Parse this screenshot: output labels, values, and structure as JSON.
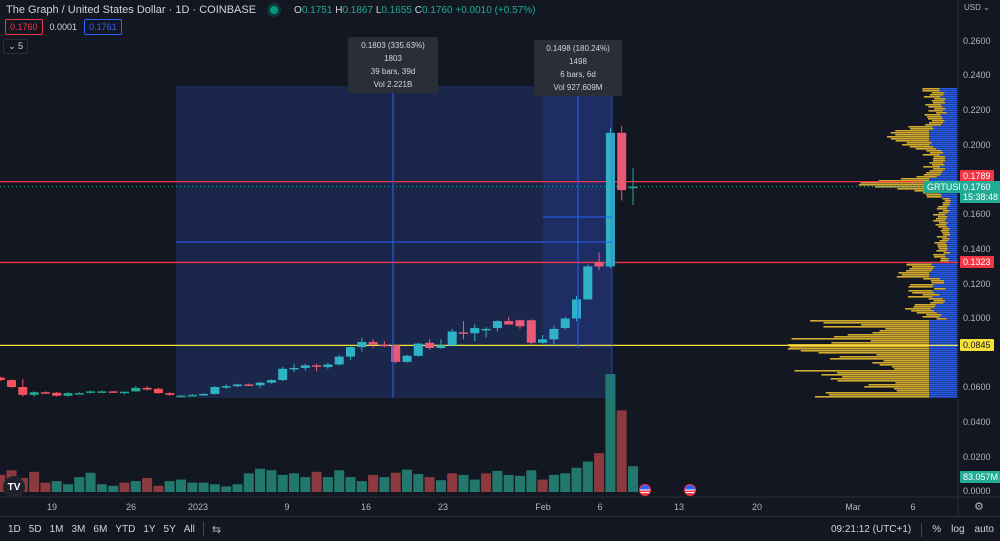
{
  "header": {
    "title": "The Graph / United States Dollar · 1D · COINBASE",
    "ohlc": {
      "o_label": "O",
      "o": "0.1751",
      "h_label": "H",
      "h": "0.1867",
      "l_label": "L",
      "l": "0.1655",
      "c_label": "C",
      "c": "0.1760",
      "change": "+0.0010 (+0.57%)"
    },
    "sell_price": "0.1760",
    "spread": "0.0001",
    "buy_price": "0.1761",
    "indicators_toggle": "⌄ 5"
  },
  "tooltips": [
    {
      "line1": "0.1803 (335.63%) 1803",
      "line2": "39 bars, 39d",
      "line3": "Vol 2.221B"
    },
    {
      "line1": "0.1498 (180.24%) 1498",
      "line2": "6 bars, 6d",
      "line3": "Vol 927.609M"
    }
  ],
  "price_axis": {
    "currency": "USD ⌄",
    "ticks": [
      "0.2600",
      "0.2400",
      "0.2200",
      "0.2000",
      "0.1600",
      "0.1400",
      "0.1200",
      "0.1000",
      "0.0600",
      "0.0400",
      "0.0200",
      "0.0000"
    ],
    "tags": {
      "resistance_high": "0.1789",
      "symbol": "GRTUSD",
      "last_price": "0.1760",
      "countdown": "15:38:48",
      "resistance_low": "0.1323",
      "support": "0.0845",
      "volume": "83.057M"
    }
  },
  "time_axis": {
    "labels": [
      "19",
      "26",
      "2023",
      "9",
      "16",
      "23",
      "Feb",
      "6",
      "13",
      "20",
      "Mar",
      "6"
    ]
  },
  "bottom_bar": {
    "ranges": [
      "1D",
      "5D",
      "1M",
      "3M",
      "6M",
      "YTD",
      "1Y",
      "5Y",
      "All"
    ],
    "clock": "09:21:12 (UTC+1)",
    "percent": "%",
    "log": "log",
    "auto": "auto"
  },
  "colors": {
    "background": "#131722",
    "up": "#22ab94",
    "down": "#f7525f",
    "up_volume": "#22786c",
    "down_volume": "#8c3a40",
    "horizontal_red": "#f23645",
    "horizontal_yellow": "#f5e13b",
    "range_fill": "#1c2a52",
    "range_line": "#2962ff",
    "vp_up": "#2962ff",
    "vp_down": "#f6c531"
  },
  "chart_data": {
    "type": "candlestick",
    "title": "The Graph / United States Dollar · 1D · COINBASE",
    "xlabel": "",
    "ylabel": "USD",
    "ylim": [
      0,
      0.26
    ],
    "x": [
      "Dec 14",
      "Dec 15",
      "Dec 16",
      "Dec 17",
      "Dec 18",
      "Dec 19",
      "Dec 20",
      "Dec 21",
      "Dec 22",
      "Dec 23",
      "Dec 24",
      "Dec 25",
      "Dec 26",
      "Dec 27",
      "Dec 28",
      "Dec 29",
      "Dec 30",
      "Dec 31",
      "Jan 1",
      "Jan 2",
      "Jan 3",
      "Jan 4",
      "Jan 5",
      "Jan 6",
      "Jan 7",
      "Jan 8",
      "Jan 9",
      "Jan 10",
      "Jan 11",
      "Jan 12",
      "Jan 13",
      "Jan 14",
      "Jan 15",
      "Jan 16",
      "Jan 17",
      "Jan 18",
      "Jan 19",
      "Jan 20",
      "Jan 21",
      "Jan 22",
      "Jan 23",
      "Jan 24",
      "Jan 25",
      "Jan 26",
      "Jan 27",
      "Jan 28",
      "Jan 29",
      "Jan 30",
      "Jan 31",
      "Feb 1",
      "Feb 2",
      "Feb 3",
      "Feb 4",
      "Feb 5",
      "Feb 6",
      "Feb 7",
      "Feb 8"
    ],
    "candles": [
      {
        "o": 0.066,
        "h": 0.0665,
        "l": 0.064,
        "c": 0.0645
      },
      {
        "o": 0.0645,
        "h": 0.065,
        "l": 0.06,
        "c": 0.0605
      },
      {
        "o": 0.0605,
        "h": 0.065,
        "l": 0.055,
        "c": 0.056
      },
      {
        "o": 0.056,
        "h": 0.058,
        "l": 0.0548,
        "c": 0.0575
      },
      {
        "o": 0.0575,
        "h": 0.058,
        "l": 0.0565,
        "c": 0.057
      },
      {
        "o": 0.0572,
        "h": 0.0578,
        "l": 0.055,
        "c": 0.0555
      },
      {
        "o": 0.0555,
        "h": 0.0575,
        "l": 0.055,
        "c": 0.057
      },
      {
        "o": 0.0568,
        "h": 0.0575,
        "l": 0.0562,
        "c": 0.057
      },
      {
        "o": 0.0572,
        "h": 0.0585,
        "l": 0.0568,
        "c": 0.058
      },
      {
        "o": 0.058,
        "h": 0.0585,
        "l": 0.0575,
        "c": 0.058
      },
      {
        "o": 0.058,
        "h": 0.0582,
        "l": 0.0572,
        "c": 0.0575
      },
      {
        "o": 0.0575,
        "h": 0.058,
        "l": 0.0562,
        "c": 0.0578
      },
      {
        "o": 0.058,
        "h": 0.061,
        "l": 0.0578,
        "c": 0.06
      },
      {
        "o": 0.06,
        "h": 0.061,
        "l": 0.0585,
        "c": 0.059
      },
      {
        "o": 0.0595,
        "h": 0.06,
        "l": 0.0565,
        "c": 0.057
      },
      {
        "o": 0.057,
        "h": 0.0575,
        "l": 0.0555,
        "c": 0.056
      },
      {
        "o": 0.0555,
        "h": 0.056,
        "l": 0.055,
        "c": 0.0555
      },
      {
        "o": 0.0555,
        "h": 0.0565,
        "l": 0.0552,
        "c": 0.056
      },
      {
        "o": 0.056,
        "h": 0.0568,
        "l": 0.0556,
        "c": 0.0565
      },
      {
        "o": 0.0565,
        "h": 0.061,
        "l": 0.0562,
        "c": 0.0605
      },
      {
        "o": 0.0605,
        "h": 0.062,
        "l": 0.0595,
        "c": 0.061
      },
      {
        "o": 0.061,
        "h": 0.0625,
        "l": 0.0605,
        "c": 0.062
      },
      {
        "o": 0.062,
        "h": 0.0625,
        "l": 0.061,
        "c": 0.0615
      },
      {
        "o": 0.0615,
        "h": 0.0635,
        "l": 0.06,
        "c": 0.063
      },
      {
        "o": 0.063,
        "h": 0.065,
        "l": 0.0625,
        "c": 0.0645
      },
      {
        "o": 0.0645,
        "h": 0.072,
        "l": 0.064,
        "c": 0.071
      },
      {
        "o": 0.071,
        "h": 0.074,
        "l": 0.069,
        "c": 0.0715
      },
      {
        "o": 0.0715,
        "h": 0.074,
        "l": 0.07,
        "c": 0.073
      },
      {
        "o": 0.073,
        "h": 0.074,
        "l": 0.0695,
        "c": 0.0725
      },
      {
        "o": 0.072,
        "h": 0.0745,
        "l": 0.071,
        "c": 0.0735
      },
      {
        "o": 0.0735,
        "h": 0.079,
        "l": 0.073,
        "c": 0.078
      },
      {
        "o": 0.078,
        "h": 0.084,
        "l": 0.076,
        "c": 0.0835
      },
      {
        "o": 0.0835,
        "h": 0.089,
        "l": 0.081,
        "c": 0.0865
      },
      {
        "o": 0.0865,
        "h": 0.088,
        "l": 0.083,
        "c": 0.085
      },
      {
        "o": 0.085,
        "h": 0.087,
        "l": 0.0835,
        "c": 0.084
      },
      {
        "o": 0.0845,
        "h": 0.085,
        "l": 0.074,
        "c": 0.075
      },
      {
        "o": 0.075,
        "h": 0.079,
        "l": 0.0745,
        "c": 0.0785
      },
      {
        "o": 0.0785,
        "h": 0.086,
        "l": 0.078,
        "c": 0.0855
      },
      {
        "o": 0.086,
        "h": 0.088,
        "l": 0.082,
        "c": 0.083
      },
      {
        "o": 0.083,
        "h": 0.088,
        "l": 0.0825,
        "c": 0.0845
      },
      {
        "o": 0.0845,
        "h": 0.094,
        "l": 0.084,
        "c": 0.0925
      },
      {
        "o": 0.092,
        "h": 0.0985,
        "l": 0.088,
        "c": 0.0915
      },
      {
        "o": 0.0915,
        "h": 0.0965,
        "l": 0.087,
        "c": 0.0945
      },
      {
        "o": 0.0935,
        "h": 0.095,
        "l": 0.089,
        "c": 0.094
      },
      {
        "o": 0.0945,
        "h": 0.099,
        "l": 0.0925,
        "c": 0.0985
      },
      {
        "o": 0.0985,
        "h": 0.101,
        "l": 0.0965,
        "c": 0.0965
      },
      {
        "o": 0.099,
        "h": 0.0995,
        "l": 0.094,
        "c": 0.0955
      },
      {
        "o": 0.099,
        "h": 0.0995,
        "l": 0.0845,
        "c": 0.086
      },
      {
        "o": 0.086,
        "h": 0.0905,
        "l": 0.0855,
        "c": 0.088
      },
      {
        "o": 0.088,
        "h": 0.096,
        "l": 0.084,
        "c": 0.094
      },
      {
        "o": 0.0945,
        "h": 0.101,
        "l": 0.0935,
        "c": 0.1
      },
      {
        "o": 0.1,
        "h": 0.113,
        "l": 0.0985,
        "c": 0.111
      },
      {
        "o": 0.111,
        "h": 0.131,
        "l": 0.111,
        "c": 0.13
      },
      {
        "o": 0.1325,
        "h": 0.138,
        "l": 0.128,
        "c": 0.13
      },
      {
        "o": 0.13,
        "h": 0.21,
        "l": 0.129,
        "c": 0.207
      },
      {
        "o": 0.207,
        "h": 0.211,
        "l": 0.168,
        "c": 0.174
      },
      {
        "o": 0.1751,
        "h": 0.1867,
        "l": 0.1655,
        "c": 0.176
      }
    ],
    "volume_millions": [
      55,
      70,
      45,
      65,
      30,
      35,
      25,
      48,
      62,
      25,
      20,
      30,
      35,
      45,
      20,
      35,
      40,
      30,
      30,
      25,
      18,
      25,
      60,
      75,
      70,
      55,
      60,
      48,
      65,
      48,
      70,
      48,
      35,
      55,
      48,
      62,
      72,
      58,
      48,
      38,
      60,
      55,
      40,
      60,
      68,
      55,
      52,
      70,
      40,
      55,
      60,
      78,
      98,
      125,
      380,
      263,
      83.057
    ],
    "volume_colors": [
      "down",
      "down",
      "down",
      "down",
      "down",
      "up",
      "up",
      "up",
      "up",
      "up",
      "up",
      "down",
      "up",
      "down",
      "down",
      "up",
      "up",
      "up",
      "up",
      "up",
      "up",
      "up",
      "up",
      "up",
      "up",
      "up",
      "up",
      "up",
      "down",
      "up",
      "up",
      "up",
      "up",
      "down",
      "up",
      "down",
      "up",
      "up",
      "down",
      "up",
      "down",
      "up",
      "up",
      "down",
      "up",
      "up",
      "up",
      "up",
      "down",
      "up",
      "up",
      "up",
      "up",
      "down",
      "up",
      "down",
      "up"
    ],
    "horizontal_lines": [
      {
        "price": 0.1789,
        "color": "red"
      },
      {
        "price": 0.1323,
        "color": "red"
      },
      {
        "price": 0.0845,
        "color": "yellow"
      }
    ],
    "date_price_ranges": [
      {
        "from": "Dec 30",
        "to": "Feb 7",
        "change": 0.1803,
        "pct": "335.63%",
        "bars": 39,
        "volume": "2.221B"
      },
      {
        "from": "Feb 2",
        "to": "Feb 7",
        "change": 0.1498,
        "pct": "180.24%",
        "bars": 6,
        "volume": "927.609M"
      }
    ],
    "last_price": 0.176,
    "legend_position": "top-left"
  }
}
